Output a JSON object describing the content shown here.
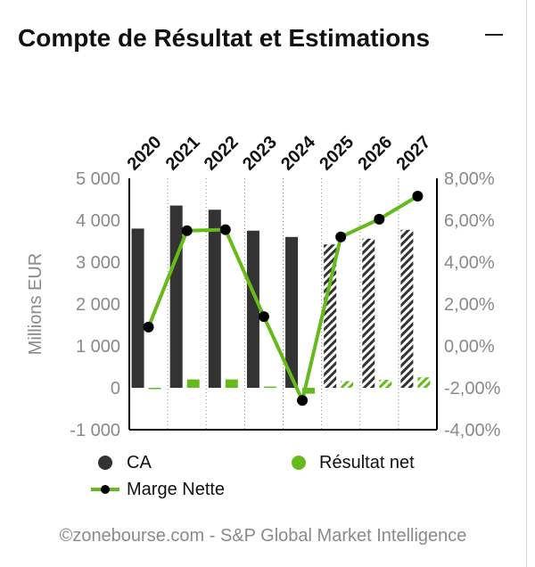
{
  "header": {
    "title": "Compte de Résultat et Estimations",
    "collapse_icon": "minus-icon"
  },
  "footer": {
    "credit": "©zonebourse.com - S&P Global Market Intelligence"
  },
  "colors": {
    "ca": "#333333",
    "resultat": "#66bb1a",
    "marge_line": "#66bb1a",
    "marge_marker": "#000000"
  },
  "chart_data": {
    "type": "bar",
    "categories": [
      "2020",
      "2021",
      "2022",
      "2023",
      "2024",
      "2025",
      "2026",
      "2027"
    ],
    "estimated_from": "2025",
    "ylabel": "Millions EUR",
    "ylim": [
      -1000,
      5000
    ],
    "yticks": [
      "5 000",
      "4 000",
      "3 000",
      "2 000",
      "1 000",
      "0",
      "-1 000"
    ],
    "y2lim": [
      -4,
      8
    ],
    "y2ticks": [
      "8,00%",
      "6,00%",
      "4,00%",
      "2,00%",
      "0,00%",
      "-2,00%",
      "-4,00%"
    ],
    "series": [
      {
        "name": "CA",
        "type": "bar",
        "axis": "left",
        "values": [
          3800,
          4350,
          4250,
          3750,
          3600,
          3420,
          3560,
          3770
        ]
      },
      {
        "name": "Résultat net",
        "type": "bar",
        "axis": "left",
        "values": [
          0,
          200,
          200,
          30,
          -140,
          160,
          190,
          250
        ]
      },
      {
        "name": "Marge Nette",
        "type": "line",
        "axis": "right",
        "values": [
          0.9,
          5.5,
          5.55,
          1.4,
          -2.6,
          5.2,
          6.05,
          7.15
        ]
      }
    ],
    "legend": {
      "position": "bottom"
    }
  }
}
